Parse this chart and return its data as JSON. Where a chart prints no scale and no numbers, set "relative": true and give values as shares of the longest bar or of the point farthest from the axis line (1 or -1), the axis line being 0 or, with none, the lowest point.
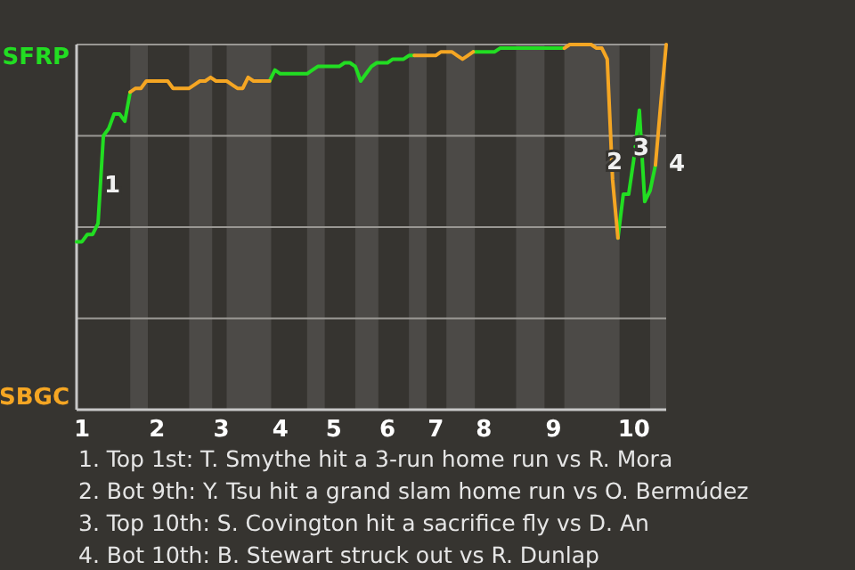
{
  "chart_data": {
    "type": "line",
    "relative": true,
    "grid": "y",
    "categories": [
      null,
      "1",
      null,
      null,
      null,
      null,
      null,
      null,
      null,
      null,
      null,
      null,
      null,
      null,
      null,
      "2",
      null,
      null,
      null,
      null,
      null,
      null,
      null,
      null,
      null,
      null,
      null,
      "3",
      null,
      null,
      null,
      null,
      null,
      null,
      null,
      null,
      null,
      null,
      "4",
      null,
      null,
      null,
      null,
      null,
      null,
      null,
      null,
      null,
      "5",
      null,
      null,
      null,
      null,
      null,
      null,
      null,
      null,
      null,
      "6",
      null,
      null,
      null,
      null,
      null,
      null,
      null,
      null,
      "7",
      null,
      null,
      null,
      null,
      null,
      null,
      null,
      null,
      "8",
      null,
      null,
      null,
      null,
      null,
      null,
      null,
      null,
      null,
      null,
      null,
      null,
      "9",
      null,
      null,
      null,
      null,
      null,
      null,
      null,
      null,
      null,
      null,
      null,
      null,
      null,
      null,
      "10",
      null,
      null,
      null,
      null,
      null,
      null
    ],
    "series": [
      {
        "name": "SFRP",
        "color": "#22dd22",
        "values": [
          0.46,
          0.46,
          0.48,
          0.48,
          0.51,
          0.75,
          0.77,
          0.81,
          0.81,
          0.79,
          0.87,
          null,
          null,
          null,
          null,
          null,
          null,
          null,
          null,
          null,
          null,
          null,
          null,
          null,
          null,
          null,
          null,
          null,
          null,
          null,
          null,
          null,
          null,
          null,
          null,
          null,
          0.9,
          0.93,
          0.92,
          0.92,
          0.92,
          0.92,
          0.92,
          0.92,
          0.93,
          0.94,
          0.94,
          0.94,
          0.94,
          0.94,
          0.95,
          0.95,
          0.94,
          0.9,
          0.92,
          0.94,
          0.95,
          0.95,
          0.95,
          0.96,
          0.96,
          0.96,
          0.97,
          0.97,
          null,
          null,
          null,
          null,
          null,
          null,
          null,
          null,
          null,
          null,
          0.98,
          0.98,
          0.98,
          0.98,
          0.98,
          0.99,
          0.99,
          0.99,
          0.99,
          0.99,
          0.99,
          0.99,
          0.99,
          0.99,
          0.99,
          0.99,
          0.99,
          0.99,
          null,
          null,
          null,
          null,
          null,
          null,
          null,
          null,
          null,
          0.47,
          0.59,
          0.59,
          0.69,
          0.82,
          0.57,
          0.6,
          0.67,
          null,
          null
        ]
      },
      {
        "name": "SBGC",
        "color": "#f5a623",
        "values": [
          null,
          null,
          null,
          null,
          null,
          null,
          null,
          null,
          null,
          null,
          0.87,
          0.88,
          0.88,
          0.9,
          0.9,
          0.9,
          0.9,
          0.9,
          0.88,
          0.88,
          0.88,
          0.88,
          0.89,
          0.9,
          0.9,
          0.91,
          0.9,
          0.9,
          0.9,
          0.89,
          0.88,
          0.88,
          0.91,
          0.9,
          0.9,
          0.9,
          0.9,
          null,
          null,
          null,
          null,
          null,
          null,
          null,
          null,
          null,
          null,
          null,
          null,
          null,
          null,
          null,
          null,
          null,
          null,
          null,
          null,
          null,
          null,
          null,
          null,
          null,
          null,
          0.97,
          0.97,
          0.97,
          0.97,
          0.97,
          0.98,
          0.98,
          0.98,
          0.97,
          0.96,
          0.97,
          0.98,
          null,
          null,
          null,
          null,
          null,
          null,
          null,
          null,
          null,
          null,
          null,
          null,
          null,
          null,
          null,
          null,
          0.99,
          1,
          1,
          1,
          1,
          1,
          0.99,
          0.99,
          0.96,
          0.63,
          0.47,
          null,
          null,
          null,
          null,
          null,
          null,
          0.67,
          0.84,
          1
        ]
      }
    ],
    "annotations": [
      "1",
      "2",
      "3",
      "4",
      "1. Top 1st: T. Smythe hit a 3-run home run vs R. Mora",
      "2. Bot 9th: Y. Tsu hit a grand slam home run vs O. Bermúdez",
      "3. Top 10th: S. Covington hit a sacrifice fly vs D. An",
      "4. Bot 10th: B. Stewart struck out vs R. Dunlap"
    ]
  }
}
